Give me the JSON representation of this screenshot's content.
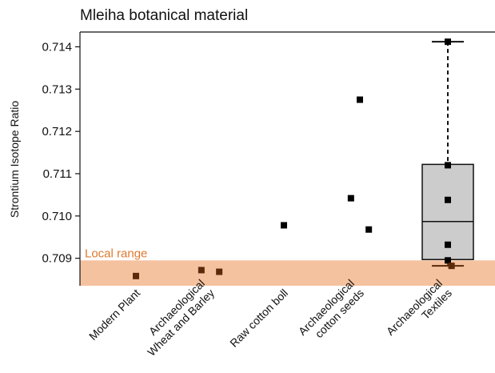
{
  "chart_data": {
    "type": "scatter",
    "title": "Mleiha botanical material",
    "ylabel": "Strontium Isotope Ratio",
    "xlabel": "",
    "ylim": [
      0.70835,
      0.71435
    ],
    "yticks": [
      "0.709",
      "0.710",
      "0.711",
      "0.712",
      "0.713",
      "0.714"
    ],
    "grid": false,
    "categories": [
      [
        "Modern Plant"
      ],
      [
        "Archaeological",
        "Wheat and Barley"
      ],
      [
        "Raw cotton boll"
      ],
      [
        "Archaeological",
        "cotton seeds"
      ],
      [
        "Archaeological",
        "Textiles"
      ]
    ],
    "local_range": {
      "label": "Local range",
      "ymin": 0.70835,
      "ymax": 0.70895,
      "color": "#f5c29f",
      "label_color": "#e07a2e"
    },
    "points": [
      {
        "category": 0,
        "offset": 0.0,
        "y": 0.70858,
        "color": "#5a2a0a"
      },
      {
        "category": 1,
        "offset": -0.12,
        "y": 0.70872,
        "color": "#5a2a0a"
      },
      {
        "category": 1,
        "offset": 0.12,
        "y": 0.70868,
        "color": "#5a2a0a"
      },
      {
        "category": 2,
        "offset": 0.0,
        "y": 0.70978,
        "color": "#000000"
      },
      {
        "category": 3,
        "offset": 0.0,
        "y": 0.71275,
        "color": "#000000"
      },
      {
        "category": 3,
        "offset": -0.12,
        "y": 0.71042,
        "color": "#000000"
      },
      {
        "category": 3,
        "offset": 0.12,
        "y": 0.70968,
        "color": "#000000"
      },
      {
        "category": 4,
        "offset": 0.0,
        "y": 0.71412,
        "color": "#000000"
      },
      {
        "category": 4,
        "offset": 0.0,
        "y": 0.7112,
        "color": "#000000"
      },
      {
        "category": 4,
        "offset": 0.0,
        "y": 0.71038,
        "color": "#000000"
      },
      {
        "category": 4,
        "offset": 0.0,
        "y": 0.70932,
        "color": "#000000"
      },
      {
        "category": 4,
        "offset": 0.0,
        "y": 0.70895,
        "color": "#000000"
      },
      {
        "category": 4,
        "offset": 0.05,
        "y": 0.70882,
        "color": "#5a2a0a"
      }
    ],
    "boxplot": {
      "category": 4,
      "whisker_low": 0.70882,
      "q1": 0.70897,
      "median": 0.70987,
      "q3": 0.71122,
      "whisker_high": 0.71412,
      "fill": "#cccccc",
      "lower_whisker_color": "#5a2a0a"
    }
  }
}
